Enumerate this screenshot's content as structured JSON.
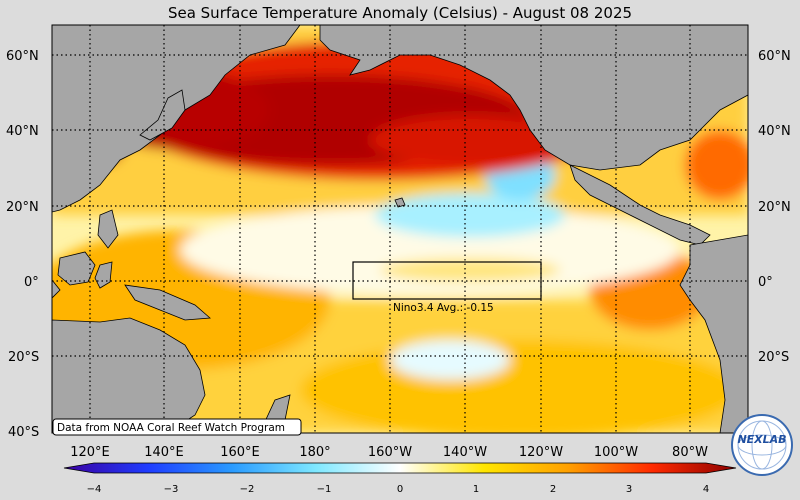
{
  "title": "Sea Surface Temperature Anomaly (Celsius) - August 08 2025",
  "lat_labels": [
    "60°N",
    "40°N",
    "20°N",
    "0°",
    "20°S",
    "40°S"
  ],
  "lon_labels": [
    "120°E",
    "140°E",
    "160°E",
    "180°",
    "160°W",
    "140°W",
    "120°W",
    "100°W",
    "80°W"
  ],
  "nino_label": "Nino3.4 Avg.: -0.15",
  "credit": "Data from NOAA Coral Reef Watch Program",
  "logo_text": "NEXLAB",
  "colorbar": {
    "ticks": [
      "−4",
      "−3",
      "−2",
      "−1",
      "0",
      "1",
      "2",
      "3",
      "4"
    ],
    "colors": [
      "#3b00a0",
      "#1f3cff",
      "#2a9bff",
      "#7fe8ff",
      "#ffffff",
      "#ffe600",
      "#ffa000",
      "#ff2a00",
      "#8b0000"
    ]
  }
}
